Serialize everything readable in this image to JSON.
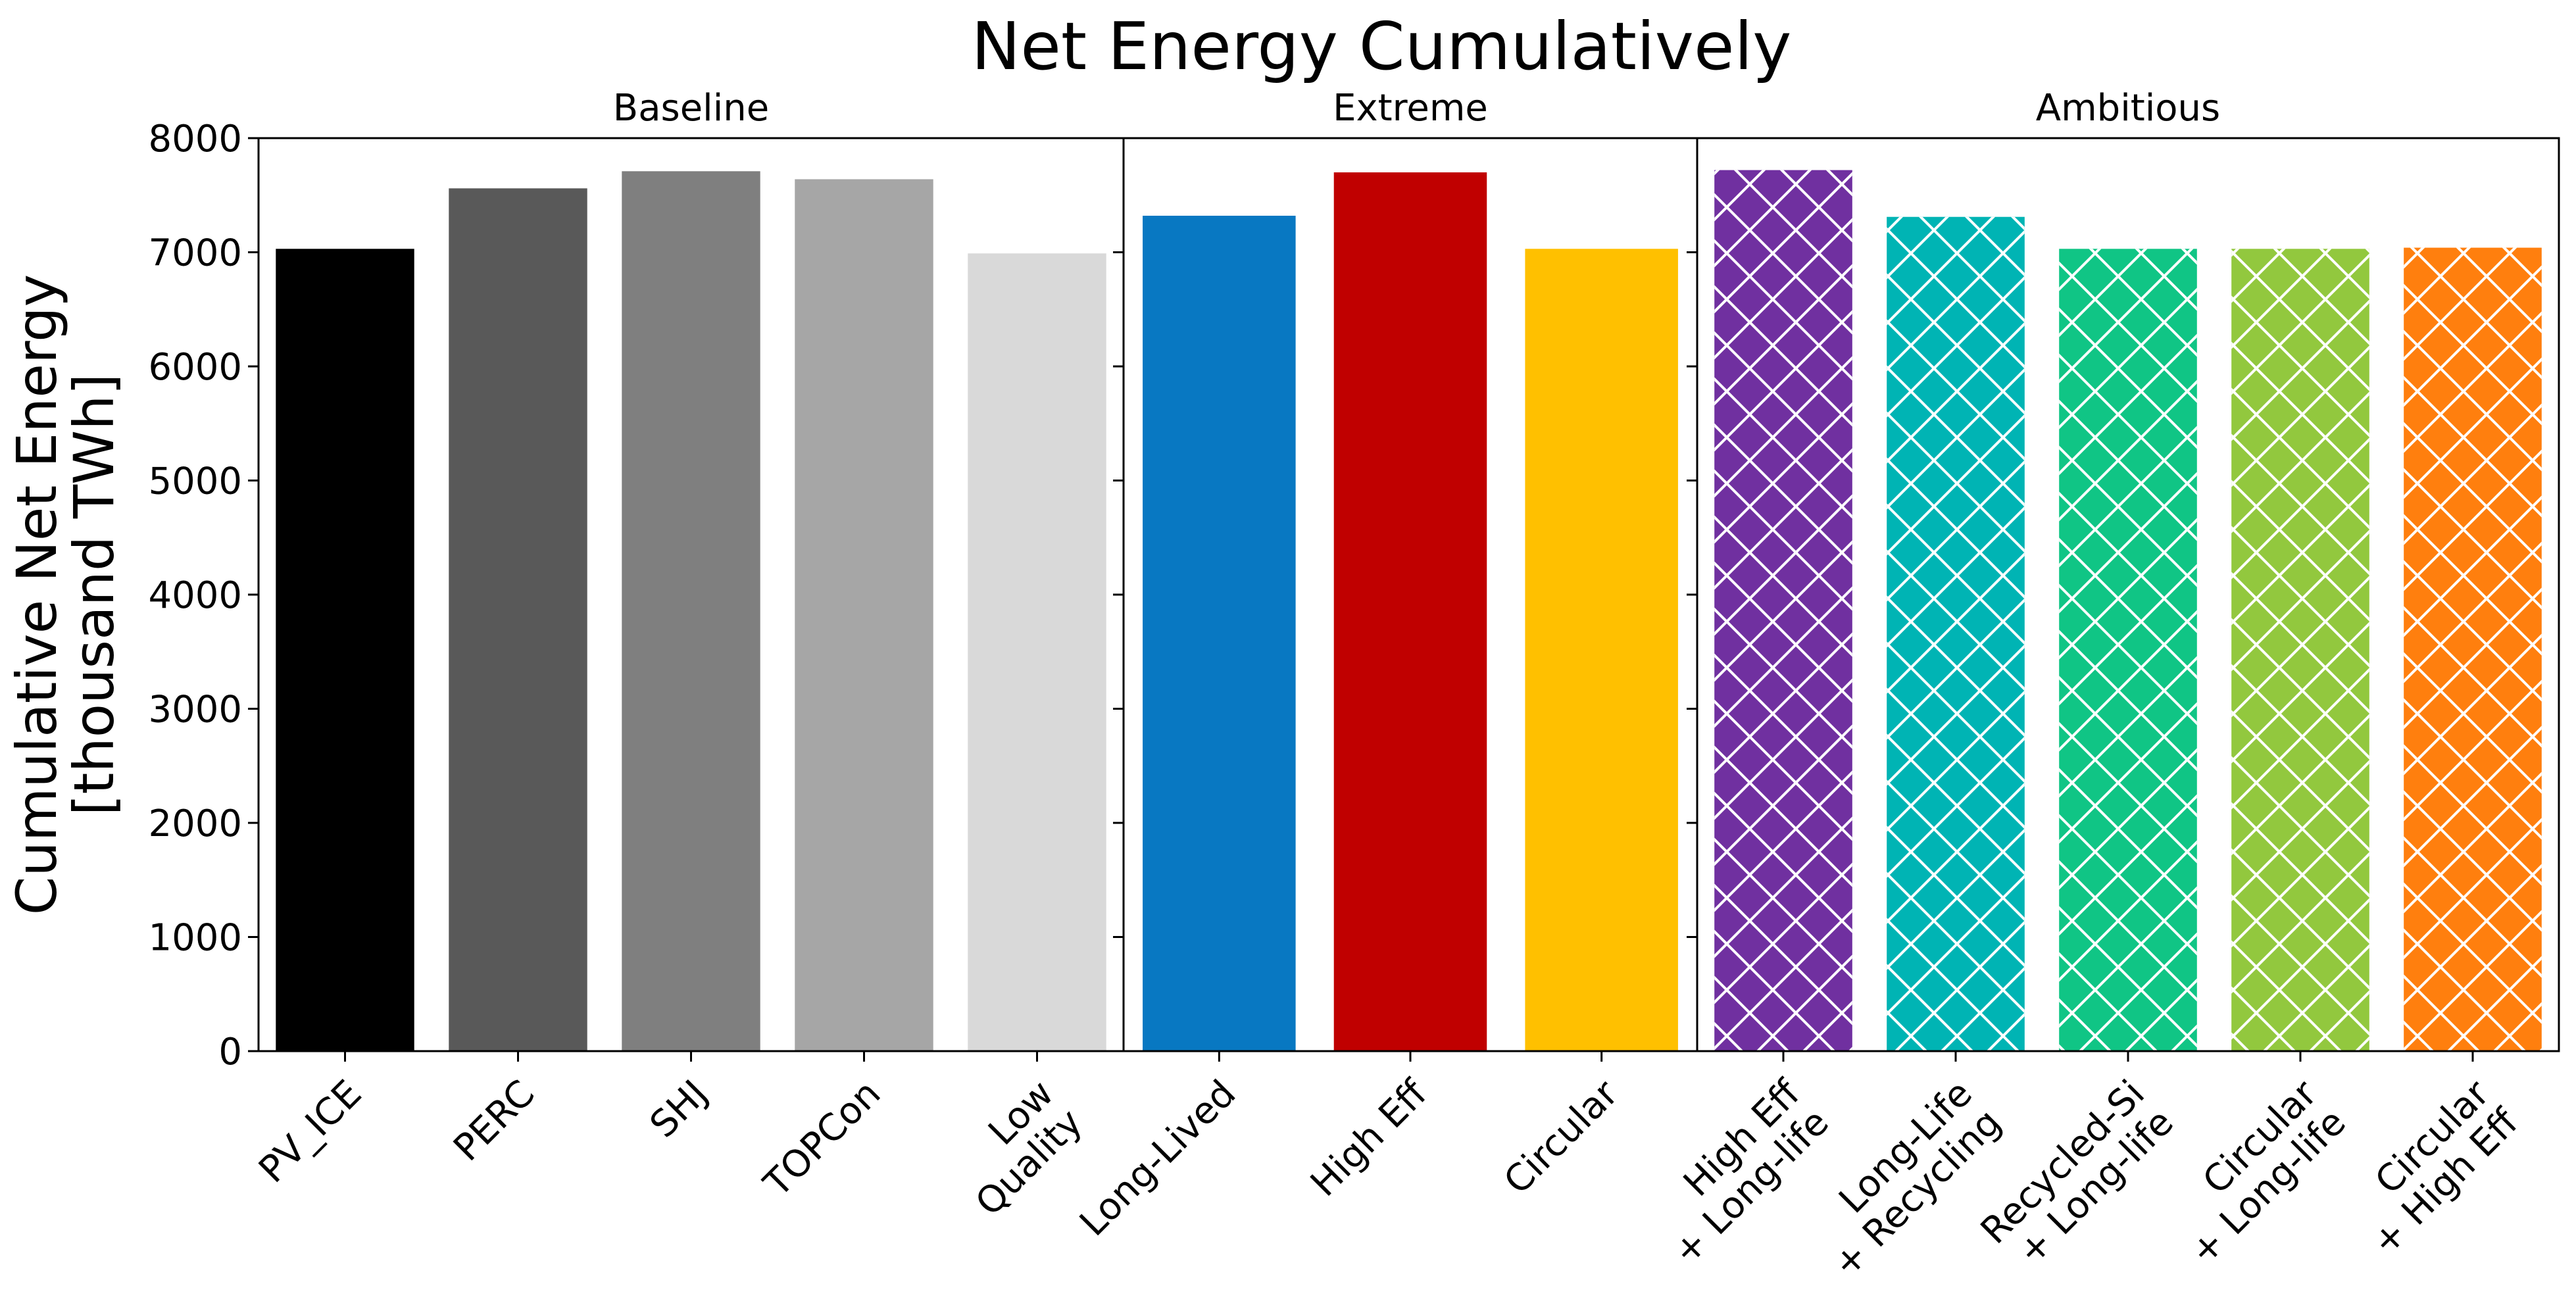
{
  "chart_data": {
    "type": "bar",
    "title": "Net Energy Cumulatively",
    "ylabel_lines": [
      "Cumulative Net Energy",
      "[thousand TWh]"
    ],
    "ylim": [
      0,
      8000
    ],
    "yticks": [
      "0",
      "1000",
      "2000",
      "3000",
      "4000",
      "5000",
      "6000",
      "7000",
      "8000"
    ],
    "grid": false,
    "panels": [
      {
        "title": "Baseline",
        "hatch": false,
        "bars": [
          {
            "label": [
              "PV_ICE"
            ],
            "value": 7030,
            "color": "#000000"
          },
          {
            "label": [
              "PERC"
            ],
            "value": 7560,
            "color": "#595959"
          },
          {
            "label": [
              "SHJ"
            ],
            "value": 7710,
            "color": "#7f7f7f"
          },
          {
            "label": [
              "TOPCon"
            ],
            "value": 7640,
            "color": "#a6a6a6"
          },
          {
            "label": [
              "Low",
              "Quality"
            ],
            "value": 6990,
            "color": "#d9d9d9"
          }
        ]
      },
      {
        "title": "Extreme",
        "hatch": false,
        "bars": [
          {
            "label": [
              "Long-Lived"
            ],
            "value": 7320,
            "color": "#0878c2"
          },
          {
            "label": [
              "High Eff"
            ],
            "value": 7700,
            "color": "#c00000"
          },
          {
            "label": [
              "Circular"
            ],
            "value": 7030,
            "color": "#ffc000"
          }
        ]
      },
      {
        "title": "Ambitious",
        "hatch": true,
        "bars": [
          {
            "label": [
              "High Eff",
              "+ Long-life"
            ],
            "value": 7720,
            "color": "#7030a0"
          },
          {
            "label": [
              "Long-Life",
              "+ Recycling"
            ],
            "value": 7310,
            "color": "#00b4b4"
          },
          {
            "label": [
              "Recycled-Si",
              "+ Long-life"
            ],
            "value": 7030,
            "color": "#10c585"
          },
          {
            "label": [
              "Circular",
              "+ Long-life"
            ],
            "value": 7030,
            "color": "#92c83e"
          },
          {
            "label": [
              "Circular",
              "+ High Eff"
            ],
            "value": 7040,
            "color": "#ff7f0e"
          }
        ]
      }
    ]
  }
}
